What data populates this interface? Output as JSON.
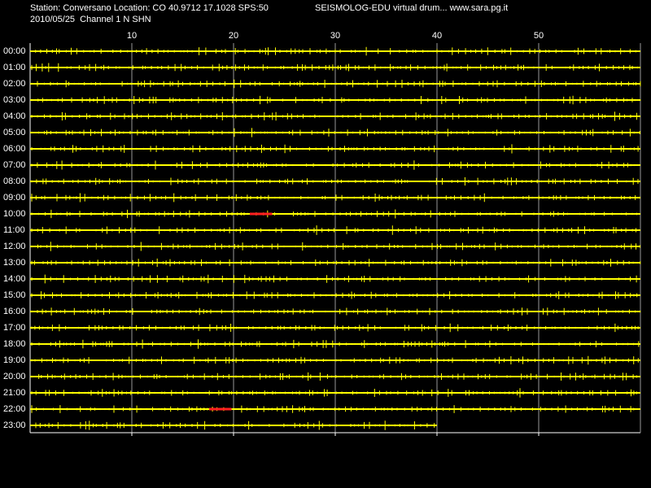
{
  "header": {
    "station": "Station: Conversano Location: CO 40.9712 17.1028 SPS:50",
    "title": "SEISMOLOG-EDU virtual drum... www.sara.pg.it",
    "date_channel": "2010/05/25  Channel 1 N SHN"
  },
  "axis": {
    "xlim": [
      0,
      60
    ],
    "xticks": [
      10,
      20,
      30,
      40,
      50
    ],
    "last_row_end": 40
  },
  "rows": [
    "00:00",
    "01:00",
    "02:00",
    "03:00",
    "04:00",
    "05:00",
    "06:00",
    "07:00",
    "08:00",
    "09:00",
    "10:00",
    "11:00",
    "12:00",
    "13:00",
    "14:00",
    "15:00",
    "16:00",
    "17:00",
    "18:00",
    "19:00",
    "20:00",
    "21:00",
    "22:00",
    "23:00"
  ],
  "events": [
    {
      "row": 10,
      "start": 21.6,
      "end": 23.8
    },
    {
      "row": 22,
      "start": 17.6,
      "end": 19.8
    }
  ]
}
